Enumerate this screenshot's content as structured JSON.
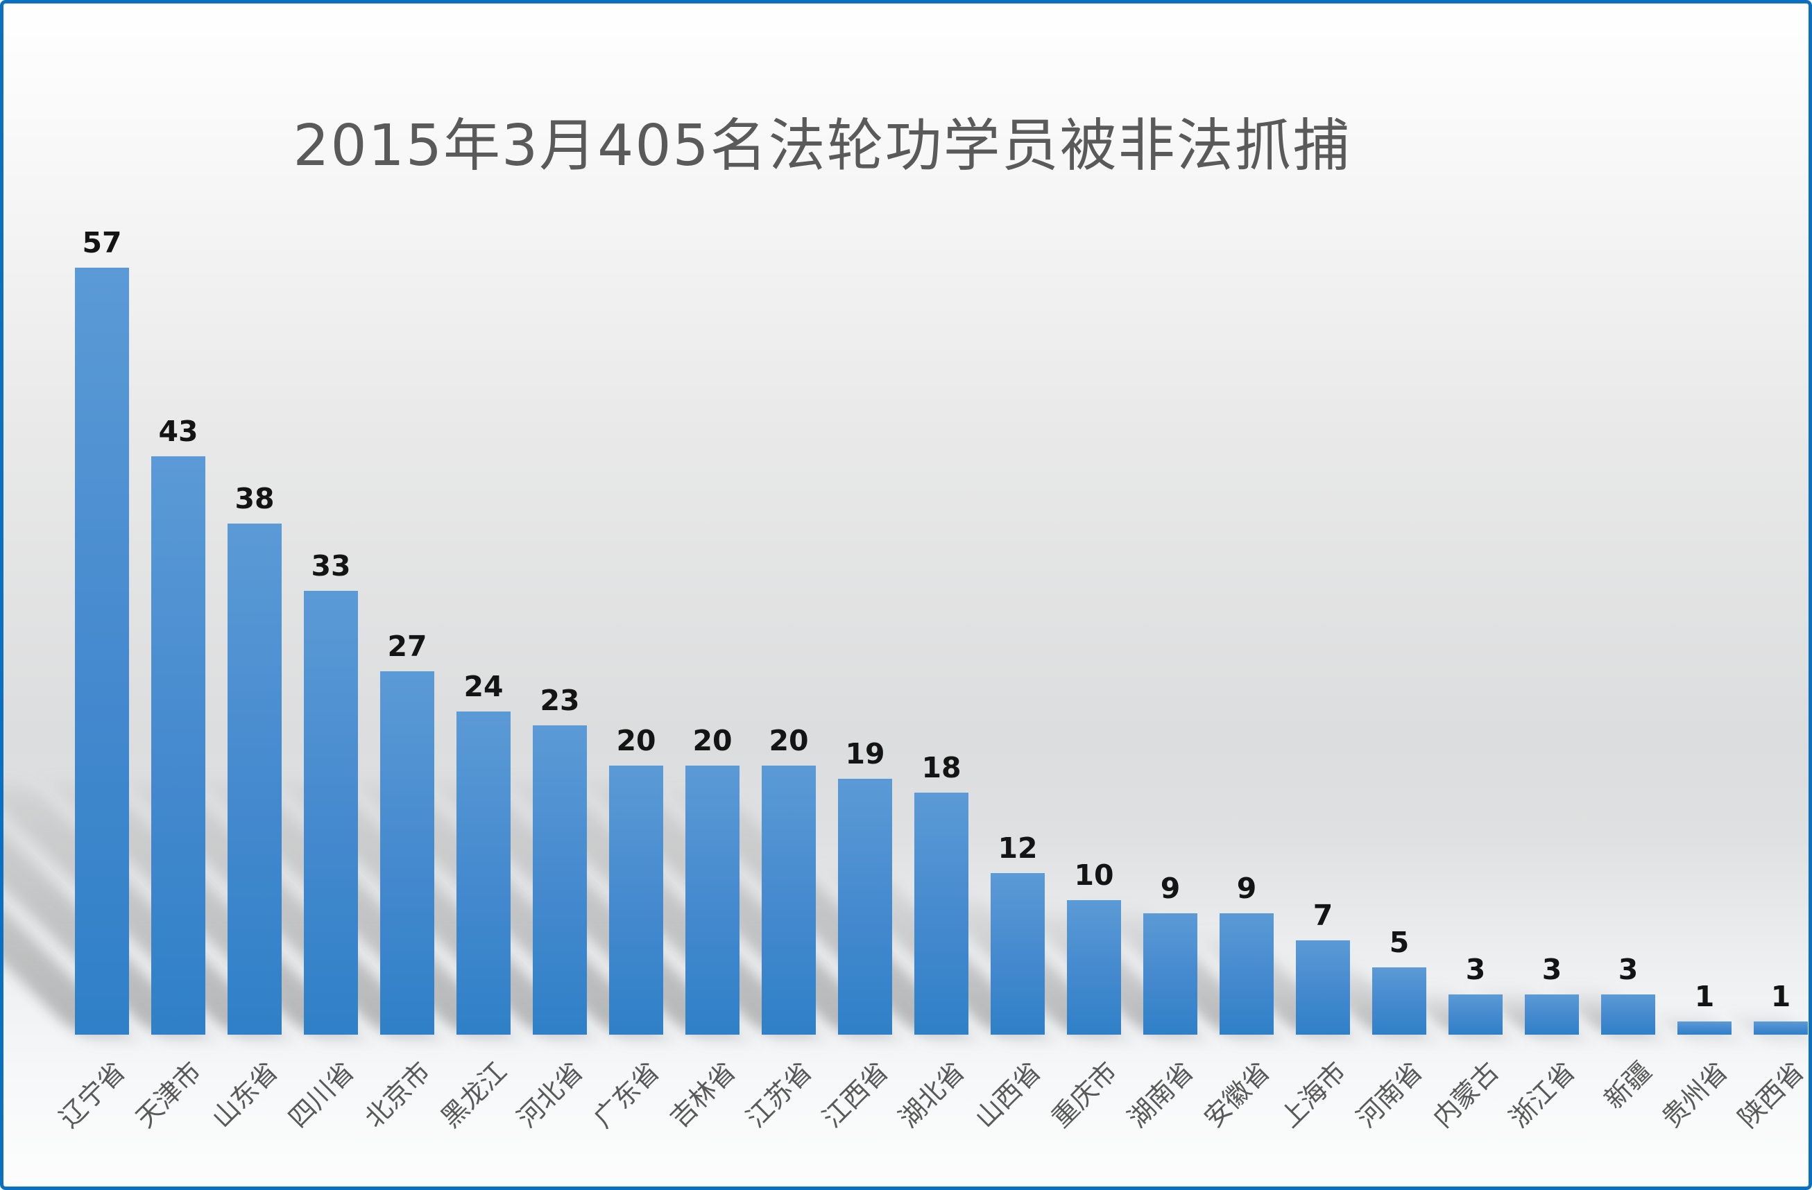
{
  "chart_data": {
    "type": "bar",
    "title": "2015年3月405名法轮功学员被非法抓捕",
    "categories": [
      "辽宁省",
      "天津市",
      "山东省",
      "四川省",
      "北京市",
      "黑龙江",
      "河北省",
      "广东省",
      "吉林省",
      "江苏省",
      "江西省",
      "湖北省",
      "山西省",
      "重庆市",
      "湖南省",
      "安徽省",
      "上海市",
      "河南省",
      "内蒙古",
      "浙江省",
      "新疆",
      "贵州省",
      "陕西省"
    ],
    "values": [
      57,
      43,
      38,
      33,
      27,
      24,
      23,
      20,
      20,
      20,
      19,
      18,
      12,
      10,
      9,
      9,
      7,
      5,
      3,
      3,
      3,
      1,
      1
    ],
    "xlabel": "",
    "ylabel": "",
    "ylim": [
      0,
      60
    ],
    "axes_visible": false,
    "gridlines": false,
    "legend": "none",
    "data_labels": true,
    "category_label_rotation_deg": -45
  },
  "colors": {
    "bar_top": "#5b9ad6",
    "bar_bottom": "#2f80c8",
    "frame_border": "#0b70c0",
    "title_text": "#5a5a5a",
    "value_label_text": "#141414",
    "category_label_text": "#595959"
  }
}
